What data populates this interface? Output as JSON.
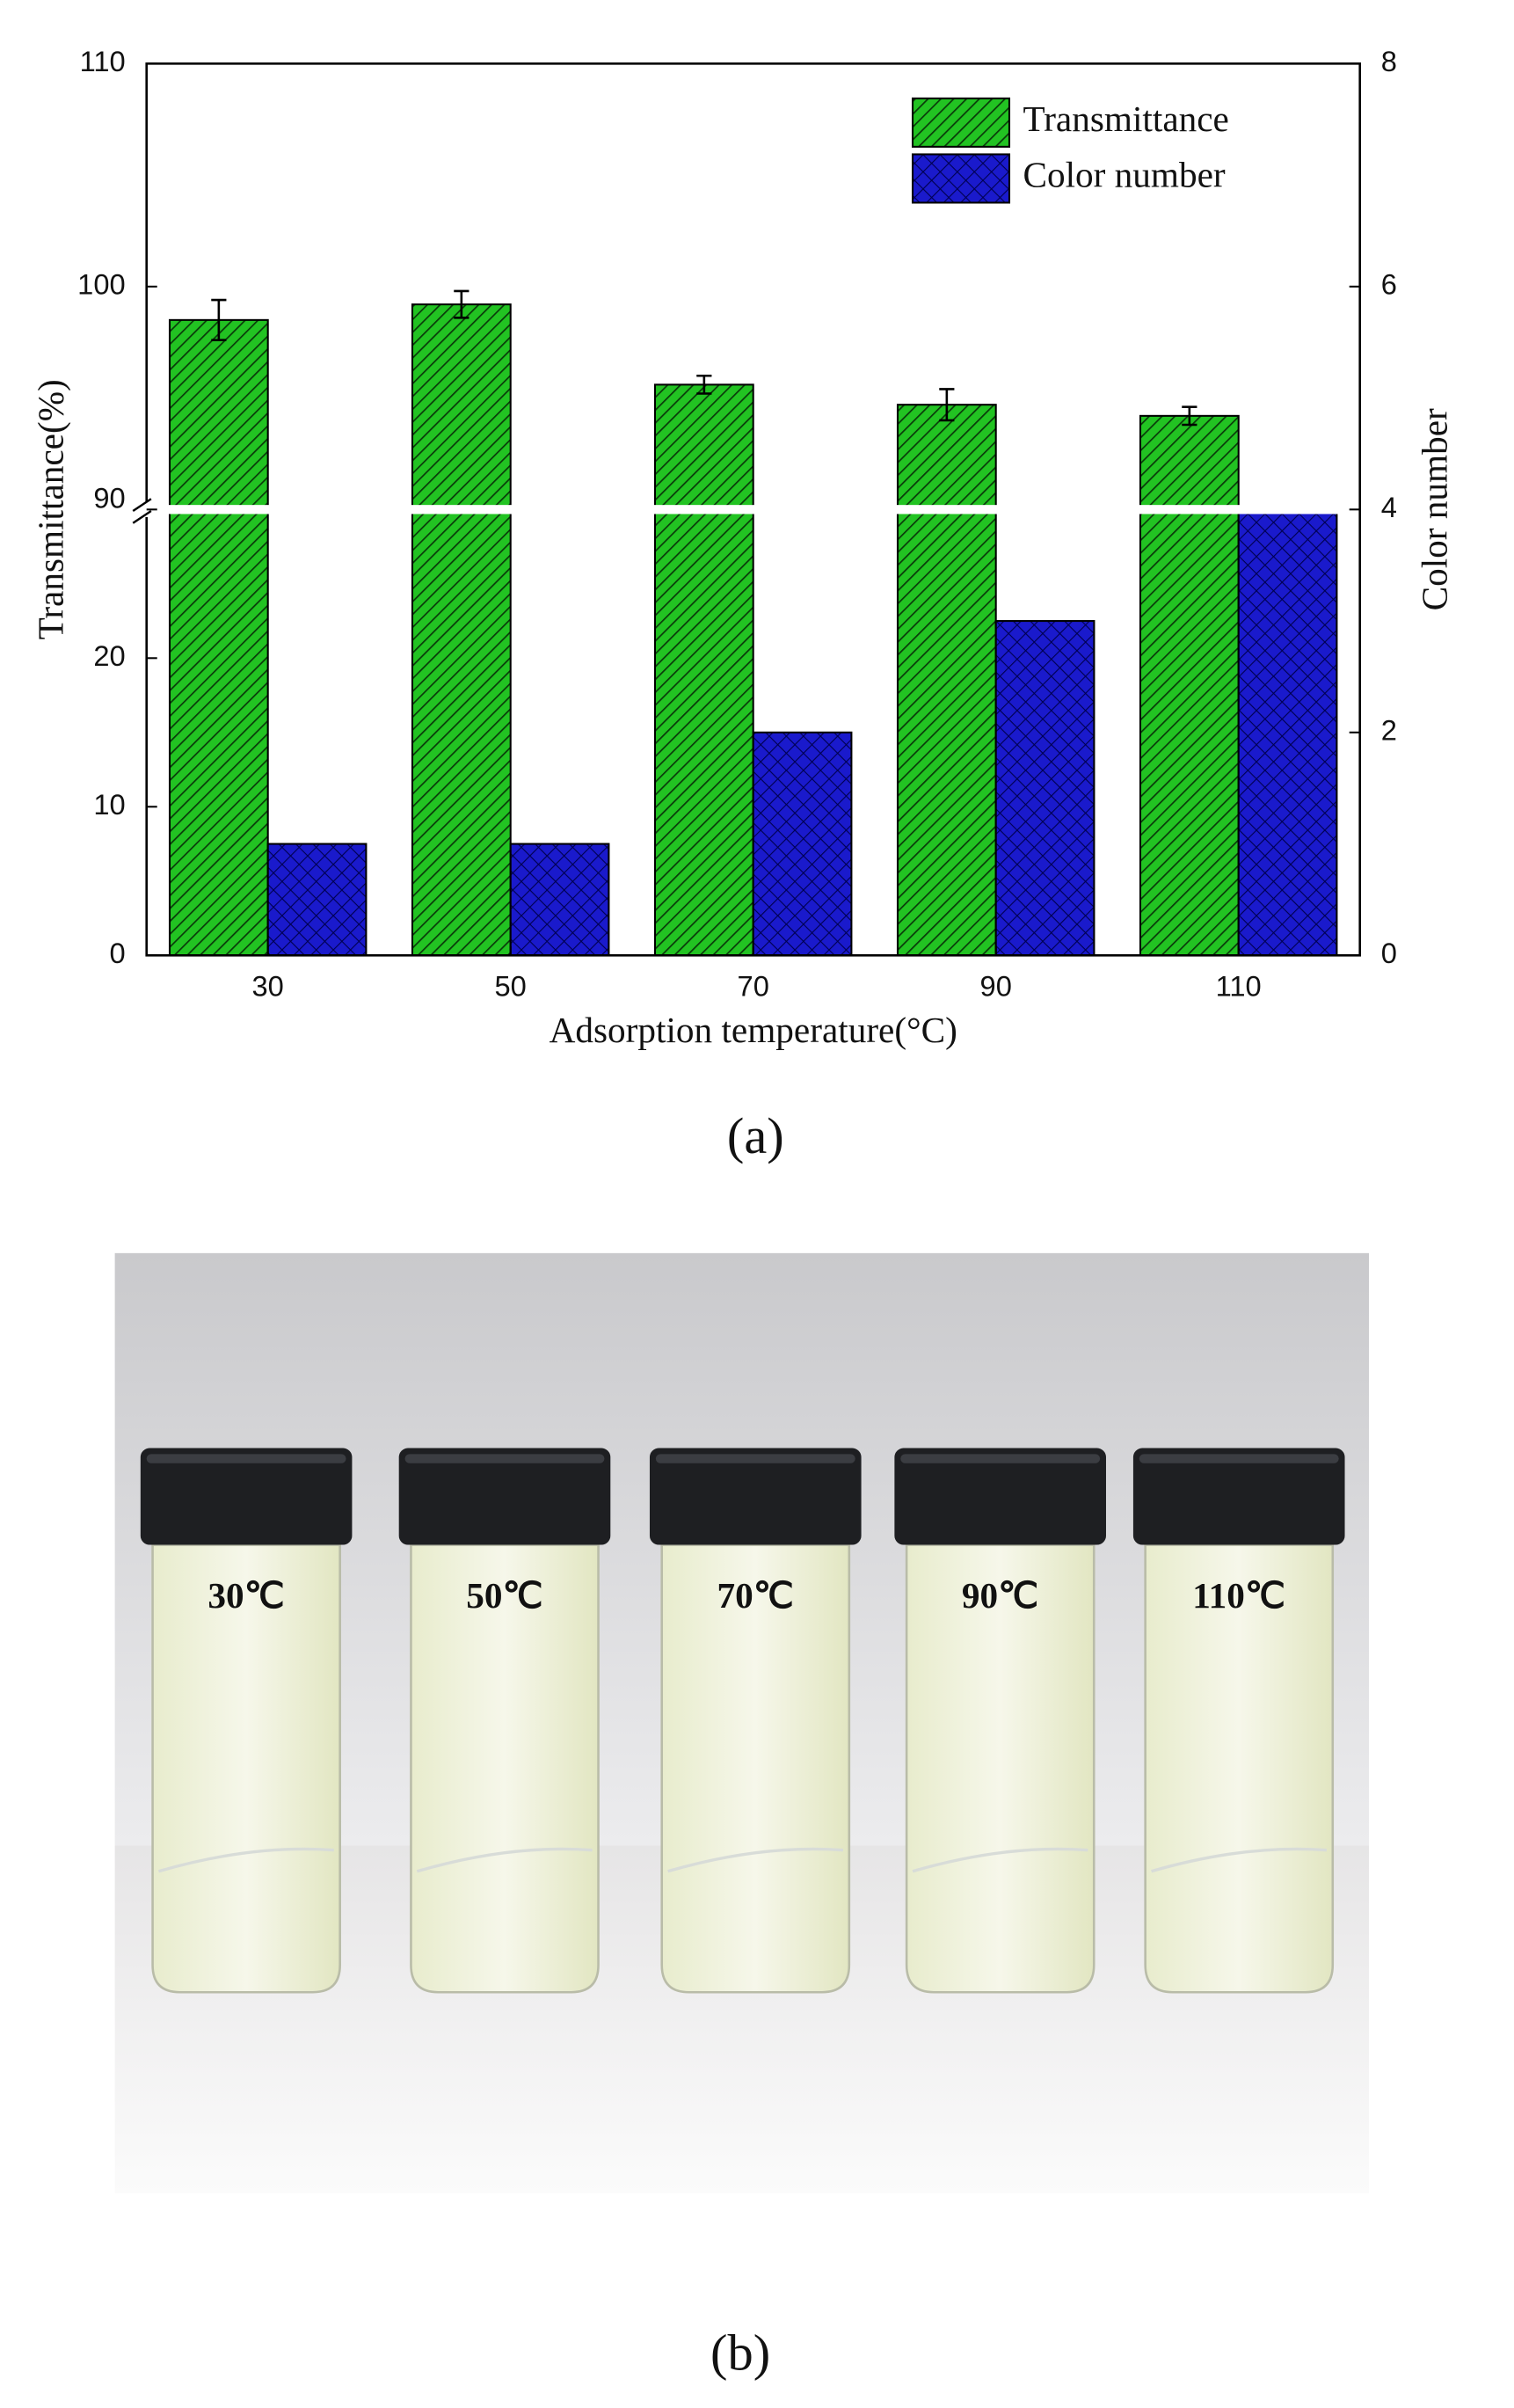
{
  "chart_data": {
    "type": "bar",
    "x_label": "Adsorption temperature(°C)",
    "y_label": "Transmittance(%)",
    "y2_label": "Color number",
    "categories": [
      "30",
      "50",
      "70",
      "90",
      "110"
    ],
    "y_segments": [
      {
        "ylim": [
          0,
          30
        ],
        "yticks": [
          0,
          10,
          20
        ]
      },
      {
        "ylim": [
          90,
          110
        ],
        "yticks": [
          90,
          100,
          110
        ]
      }
    ],
    "y2lim": [
      0,
      8
    ],
    "y2ticks": [
      0,
      2,
      4,
      6,
      8
    ],
    "legend": "upper right",
    "series": [
      {
        "name": "Transmittance",
        "color": "#22c322",
        "values": [
          98.5,
          99.2,
          95.6,
          94.7,
          94.2
        ],
        "errors": [
          0.9,
          0.6,
          0.4,
          0.7,
          0.4
        ]
      },
      {
        "name": "Color number",
        "color": "#1a1acc",
        "axis": "y2",
        "values": [
          1,
          1,
          2,
          3,
          4
        ]
      }
    ]
  },
  "panel_labels": [
    "(a)",
    "(b)"
  ],
  "photo": {
    "vial_labels": [
      "30℃",
      "50℃",
      "70℃",
      "90℃",
      "110℃"
    ]
  }
}
